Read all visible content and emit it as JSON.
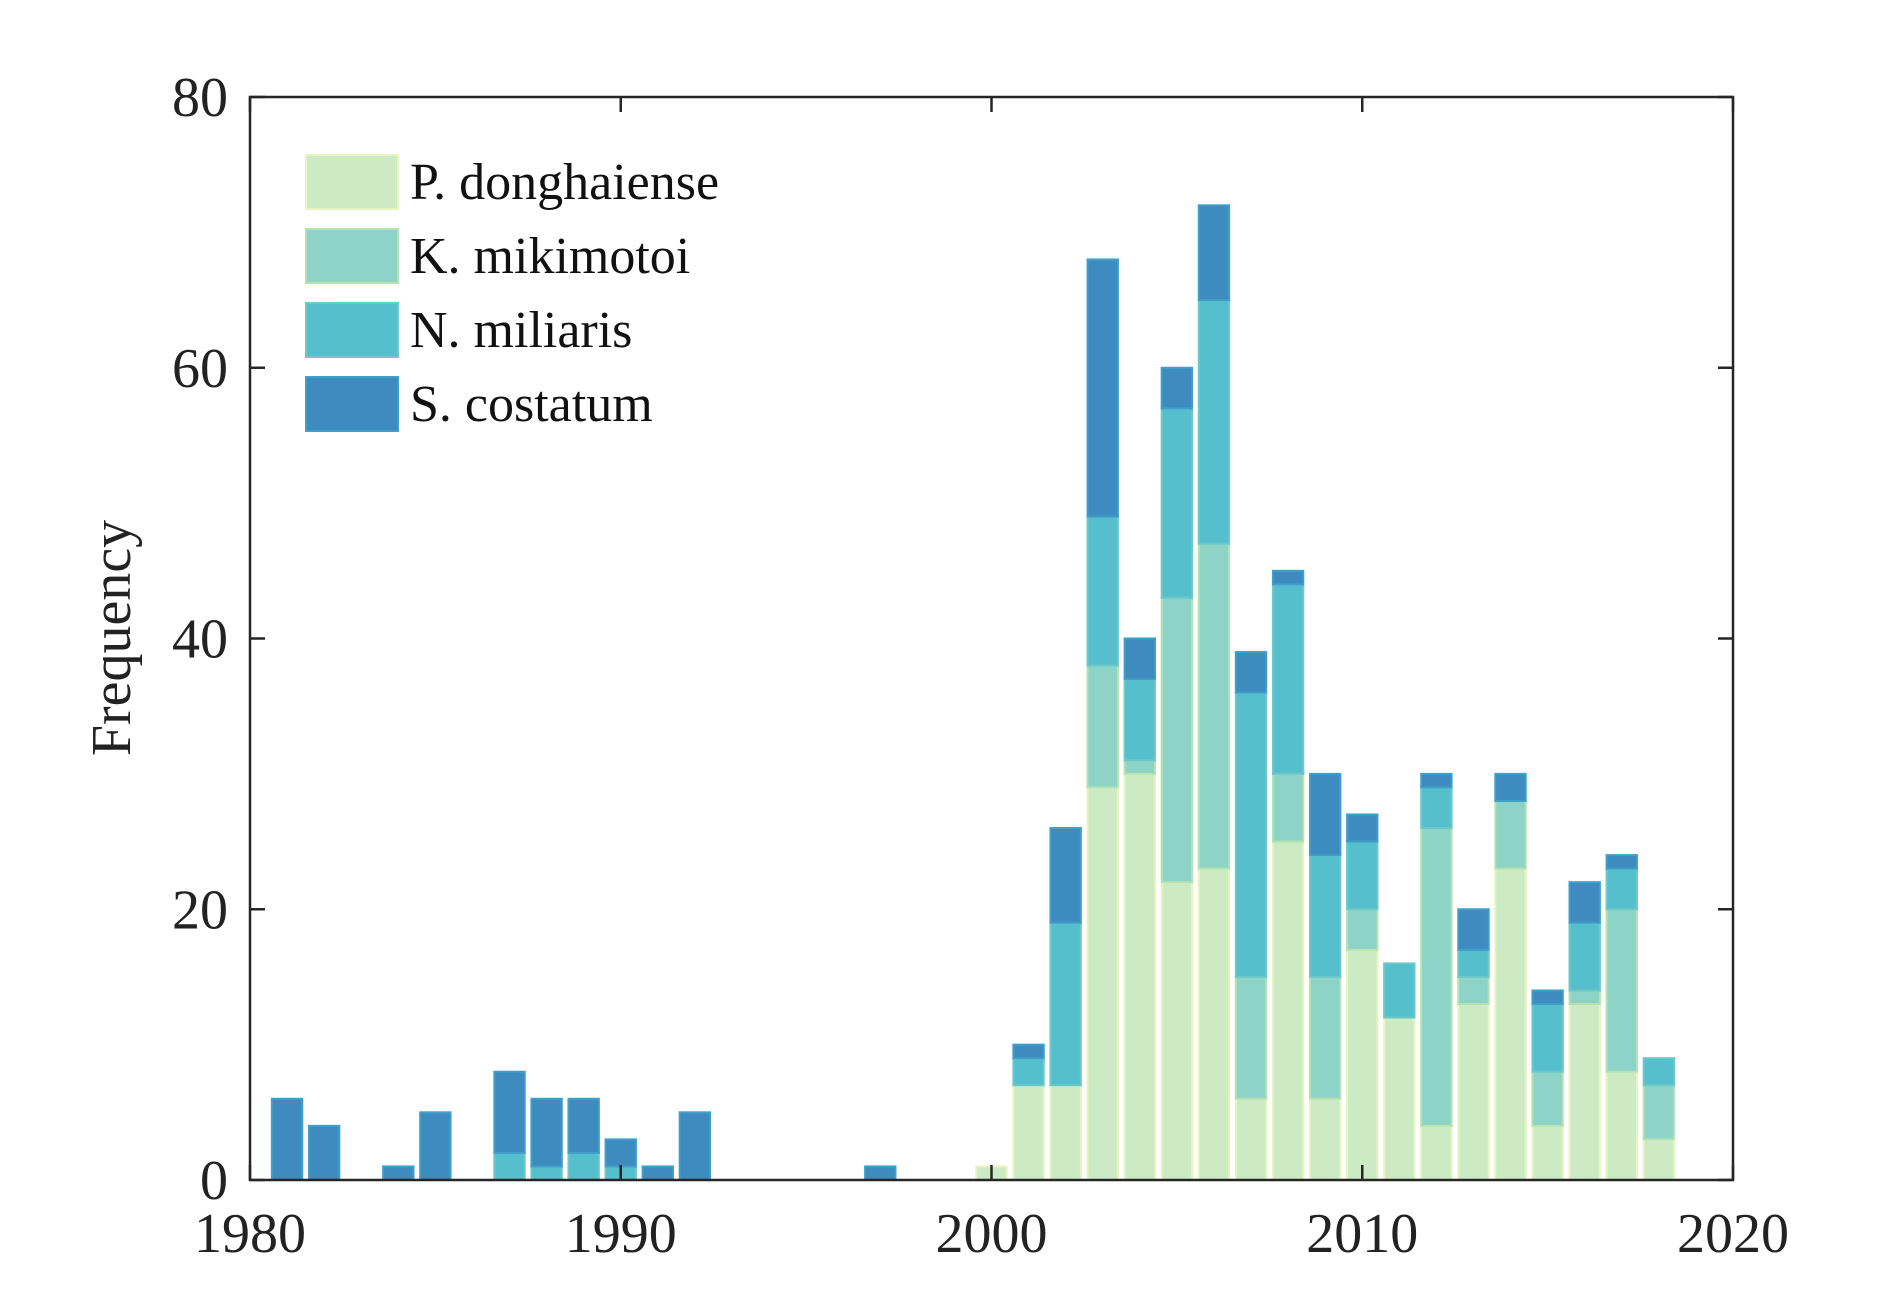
{
  "chart_data": {
    "type": "bar",
    "stacked": true,
    "title": "",
    "xlabel": "",
    "ylabel": "Frequency",
    "xlim": [
      1980,
      2020
    ],
    "ylim": [
      0,
      80
    ],
    "xticks": [
      1980,
      1990,
      2000,
      2010,
      2020
    ],
    "yticks": [
      0,
      20,
      40,
      60,
      80
    ],
    "grid": false,
    "legend_position": "top-left",
    "x": [
      1981,
      1982,
      1983,
      1984,
      1985,
      1986,
      1987,
      1988,
      1989,
      1990,
      1991,
      1992,
      1993,
      1994,
      1995,
      1996,
      1997,
      1998,
      1999,
      2000,
      2001,
      2002,
      2003,
      2004,
      2005,
      2006,
      2007,
      2008,
      2009,
      2010,
      2011,
      2012,
      2013,
      2014,
      2015,
      2016,
      2017,
      2018
    ],
    "series": [
      {
        "name": "P. donghaiense",
        "color": "#ccebc5",
        "edge": "#e8f4c0",
        "values": [
          0,
          0,
          0,
          0,
          0,
          0,
          0,
          0,
          0,
          0,
          0,
          0,
          0,
          0,
          0,
          0,
          0,
          0,
          0,
          1,
          7,
          7,
          29,
          30,
          22,
          23,
          6,
          25,
          6,
          17,
          12,
          4,
          13,
          23,
          4,
          13,
          8,
          3
        ]
      },
      {
        "name": "K. mikimotoi",
        "color": "#8dd3c7",
        "edge": "#b4e2b0",
        "values": [
          0,
          0,
          0,
          0,
          0,
          0,
          0,
          0,
          0,
          0,
          0,
          0,
          0,
          0,
          0,
          0,
          0,
          0,
          0,
          0,
          0,
          0,
          9,
          1,
          21,
          24,
          9,
          5,
          9,
          3,
          0,
          22,
          2,
          5,
          4,
          1,
          12,
          4
        ]
      },
      {
        "name": "N. miliaris",
        "color": "#56bfcd",
        "edge": "#6cc9c8",
        "values": [
          0,
          0,
          0,
          0,
          0,
          0,
          2,
          1,
          2,
          1,
          0,
          0,
          0,
          0,
          0,
          0,
          0,
          0,
          0,
          0,
          2,
          12,
          11,
          6,
          14,
          18,
          21,
          14,
          9,
          5,
          4,
          3,
          2,
          0,
          5,
          5,
          3,
          2
        ]
      },
      {
        "name": "S. costatum",
        "color": "#3e8bc0",
        "edge": "#3f9fc8",
        "values": [
          6,
          4,
          0,
          1,
          5,
          0,
          6,
          5,
          4,
          2,
          1,
          5,
          0,
          0,
          0,
          0,
          1,
          0,
          0,
          0,
          1,
          7,
          19,
          3,
          3,
          7,
          3,
          1,
          6,
          2,
          0,
          1,
          3,
          2,
          1,
          3,
          1,
          0
        ]
      }
    ]
  }
}
